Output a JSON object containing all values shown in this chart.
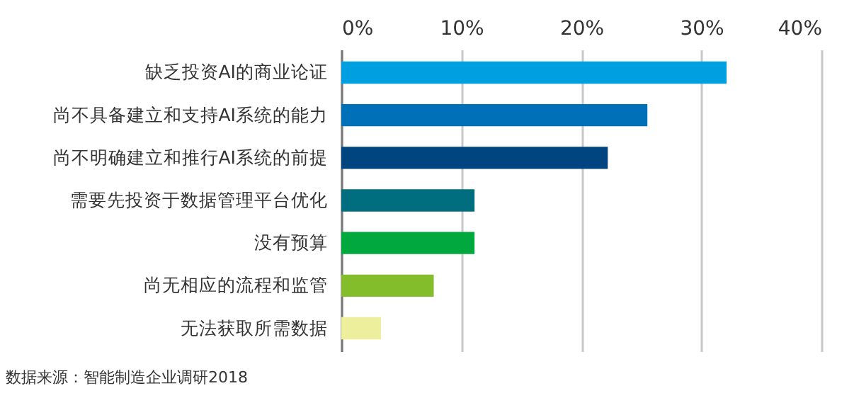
{
  "chart_data": {
    "type": "bar",
    "orientation": "horizontal",
    "categories": [
      "缺乏投资AI的商业论证",
      "尚不具备建立和支持AI系统的能力",
      "尚不明确建立和推行AI系统的前提",
      "需要先投资于数据管理平台优化",
      "没有预算",
      "尚无相应的流程和监管",
      "无法获取所需数据"
    ],
    "values": [
      32.1,
      25.5,
      22.2,
      11.1,
      11.1,
      7.7,
      3.3
    ],
    "colors": [
      "#009fe0",
      "#0070b8",
      "#00457f",
      "#006e7e",
      "#00a83e",
      "#84bd2b",
      "#eeef9d"
    ],
    "xlim": [
      0,
      40
    ],
    "xticks": [
      {
        "value": 0,
        "label": "0%"
      },
      {
        "value": 10,
        "label": "10%"
      },
      {
        "value": 20,
        "label": "20%"
      },
      {
        "value": 30,
        "label": "30%"
      },
      {
        "value": 40,
        "label": "40%"
      }
    ],
    "grid": "x",
    "annotations": [
      "数据来源：智能制造企业调研2018"
    ]
  }
}
